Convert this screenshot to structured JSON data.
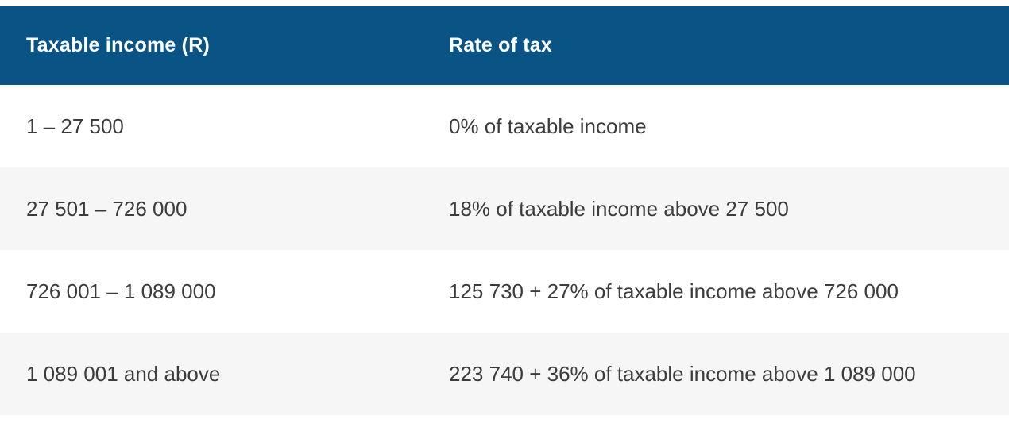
{
  "table": {
    "columns": [
      {
        "label": "Taxable income (R)"
      },
      {
        "label": "Rate of tax"
      }
    ],
    "rows": [
      {
        "income": "1 – 27 500",
        "rate": "0% of taxable income"
      },
      {
        "income": "27 501 – 726 000",
        "rate": "18% of taxable income above 27 500"
      },
      {
        "income": "726 001 – 1 089 000",
        "rate": "125 730 + 27% of taxable income above 726 000"
      },
      {
        "income": "1 089 001 and above",
        "rate": "223 740 + 36% of taxable income above 1 089 000"
      }
    ],
    "colors": {
      "header_bg": "#0a5385",
      "header_text": "#ffffff",
      "row_bg": "#ffffff",
      "row_alt_bg": "#f6f6f6",
      "body_text": "#3c3c3c"
    }
  }
}
